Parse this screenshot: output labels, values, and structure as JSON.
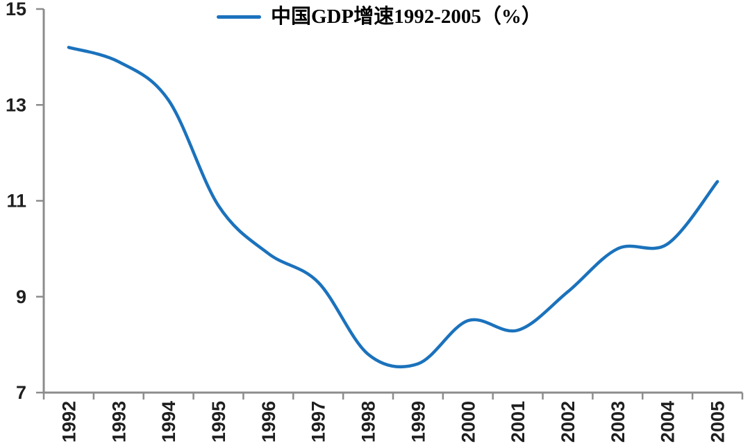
{
  "legend": {
    "label": "中国GDP增速1992-2005（%）"
  },
  "colors": {
    "line": "#1B72BC",
    "axis": "#8C8C8C",
    "tick_label": "#1F1F1F",
    "legend_text": "#000000",
    "background": "#FFFFFF"
  },
  "chart_data": {
    "type": "line",
    "title": "中国GDP增速1992-2005（%）",
    "xlabel": "",
    "ylabel": "",
    "categories": [
      "1992",
      "1993",
      "1994",
      "1995",
      "1996",
      "1997",
      "1998",
      "1999",
      "2000",
      "2001",
      "2002",
      "2003",
      "2004",
      "2005"
    ],
    "series": [
      {
        "name": "中国GDP增速1992-2005（%）",
        "values": [
          14.2,
          13.9,
          13.1,
          10.9,
          9.9,
          9.3,
          7.8,
          7.6,
          8.5,
          8.3,
          9.1,
          10.0,
          10.1,
          11.4
        ]
      }
    ],
    "ylim": [
      7,
      15
    ],
    "yticks": [
      7,
      9,
      11,
      13,
      15
    ],
    "grid": false,
    "smoothed_line": true,
    "legend_position": "top-center",
    "x_tick_label_rotation_deg": 90
  }
}
